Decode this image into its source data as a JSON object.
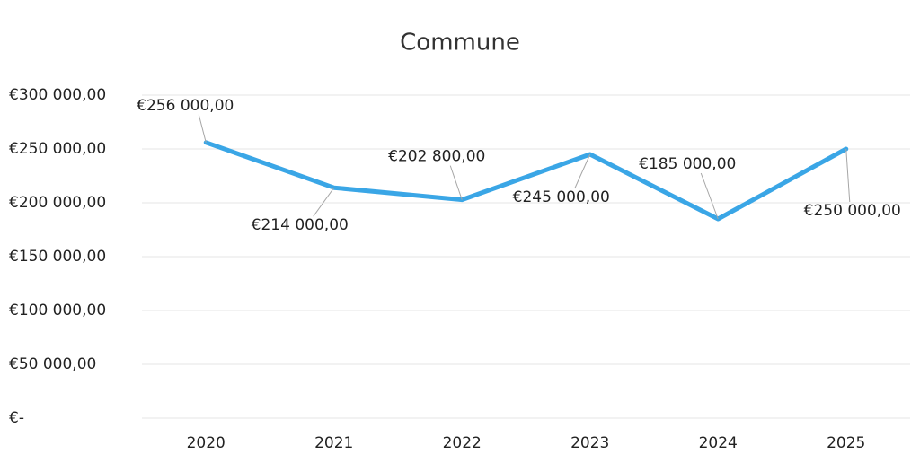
{
  "chart_data": {
    "type": "line",
    "title": "Commune",
    "categories": [
      "2020",
      "2021",
      "2022",
      "2023",
      "2024",
      "2025"
    ],
    "series": [
      {
        "name": "Commune",
        "color": "#3aa6e6",
        "values": [
          256000,
          214000,
          202800,
          245000,
          185000,
          250000
        ],
        "value_labels": [
          "€256 000,00",
          "€214 000,00",
          "€202 800,00",
          "€245 000,00",
          "€185 000,00",
          "€250 000,00"
        ]
      }
    ],
    "ylim": [
      0,
      300000
    ],
    "yticks": [
      {
        "value": 0,
        "label": "€-"
      },
      {
        "value": 50000,
        "label": "€50 000,00"
      },
      {
        "value": 100000,
        "label": "€100 000,00"
      },
      {
        "value": 150000,
        "label": "€150 000,00"
      },
      {
        "value": 200000,
        "label": "€200 000,00"
      },
      {
        "value": 250000,
        "label": "€250 000,00"
      },
      {
        "value": 300000,
        "label": "€300 000,00"
      }
    ],
    "grid": true
  }
}
